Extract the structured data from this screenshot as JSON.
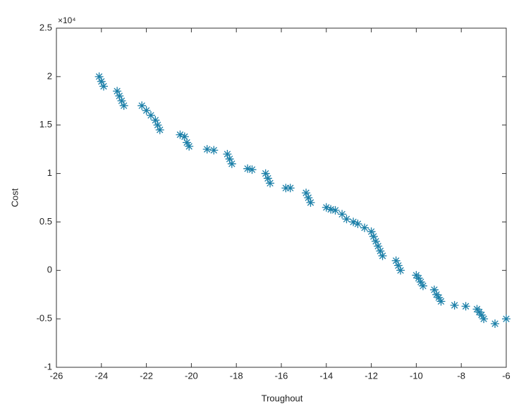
{
  "chart_data": {
    "type": "scatter",
    "x_label": "Troughout",
    "y_label": "Cost",
    "y_multiplier": "×10⁴",
    "color": "#1b7fa8",
    "marker": "asterisk",
    "xlim": [
      -26,
      -6
    ],
    "xticks": [
      -26,
      -24,
      -22,
      -20,
      -18,
      -16,
      -14,
      -12,
      -10,
      -8,
      -6
    ],
    "ylim": [
      -1,
      2.5
    ],
    "yticks": [
      -1,
      -0.5,
      0,
      0.5,
      1,
      1.5,
      2,
      2.5
    ],
    "x": [
      -24.1,
      -24.0,
      -23.9,
      -23.3,
      -23.2,
      -23.1,
      -23.0,
      -22.2,
      -22.0,
      -21.8,
      -21.6,
      -21.5,
      -21.4,
      -20.5,
      -20.3,
      -20.2,
      -20.1,
      -19.3,
      -19.0,
      -18.4,
      -18.3,
      -18.2,
      -17.5,
      -17.3,
      -16.7,
      -16.6,
      -16.5,
      -15.8,
      -15.6,
      -14.9,
      -14.8,
      -14.7,
      -14.0,
      -13.8,
      -13.6,
      -13.3,
      -13.1,
      -12.8,
      -12.6,
      -12.3,
      -12.0,
      -11.9,
      -11.8,
      -11.7,
      -11.6,
      -11.5,
      -10.9,
      -10.8,
      -10.7,
      -10.0,
      -9.9,
      -9.8,
      -9.7,
      -9.2,
      -9.1,
      -9.0,
      -8.9,
      -8.3,
      -7.8,
      -7.3,
      -7.2,
      -7.1,
      -7.0,
      -6.5,
      -6.0
    ],
    "values": [
      2.0,
      1.95,
      1.9,
      1.85,
      1.8,
      1.75,
      1.7,
      1.7,
      1.65,
      1.6,
      1.55,
      1.5,
      1.45,
      1.4,
      1.38,
      1.32,
      1.28,
      1.25,
      1.24,
      1.2,
      1.15,
      1.1,
      1.05,
      1.04,
      1.0,
      0.95,
      0.9,
      0.85,
      0.85,
      0.8,
      0.75,
      0.7,
      0.65,
      0.63,
      0.62,
      0.58,
      0.53,
      0.5,
      0.48,
      0.44,
      0.4,
      0.35,
      0.3,
      0.25,
      0.2,
      0.15,
      0.1,
      0.05,
      0.0,
      -0.05,
      -0.08,
      -0.12,
      -0.16,
      -0.2,
      -0.25,
      -0.28,
      -0.32,
      -0.36,
      -0.37,
      -0.4,
      -0.43,
      -0.46,
      -0.5,
      -0.55,
      -0.5
    ]
  }
}
